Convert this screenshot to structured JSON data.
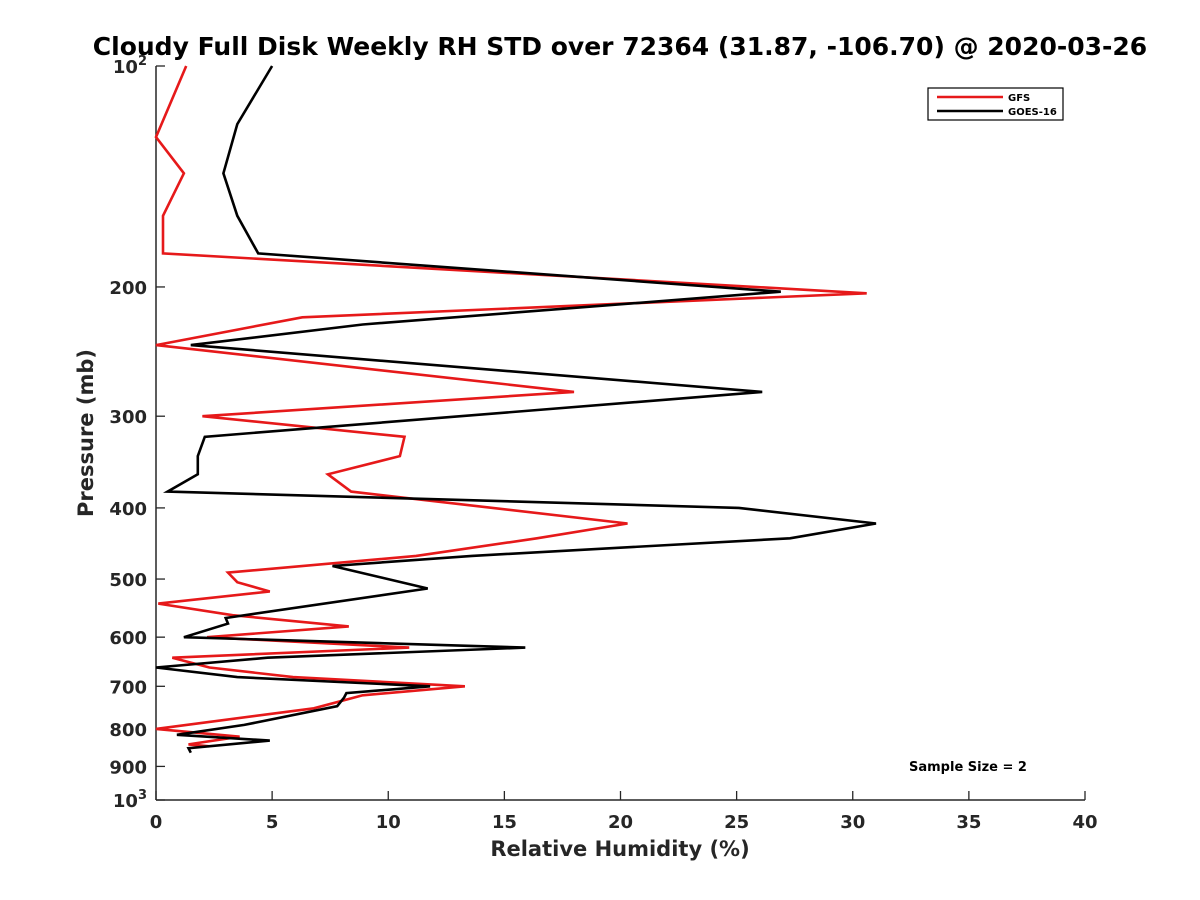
{
  "chart_data": {
    "type": "line",
    "title": "Cloudy Full Disk Weekly RH STD over 72364 (31.87, -106.70) @ 2020-03-26",
    "xlabel": "Relative Humidity (%)",
    "ylabel": "Pressure (mb)",
    "xlim": [
      0,
      40
    ],
    "ylim": [
      100,
      1000
    ],
    "yscale": "log",
    "y_reversed": true,
    "grid": false,
    "legend_position": "top-right",
    "x_ticks": [
      "0",
      "5",
      "10",
      "15",
      "20",
      "25",
      "30",
      "35",
      "40"
    ],
    "y_ticks": [
      {
        "value": 100,
        "base": "10",
        "exp": "2"
      },
      {
        "value": 200,
        "label": "200"
      },
      {
        "value": 300,
        "label": "300"
      },
      {
        "value": 400,
        "label": "400"
      },
      {
        "value": 500,
        "label": "500"
      },
      {
        "value": 600,
        "label": "600"
      },
      {
        "value": 700,
        "label": "700"
      },
      {
        "value": 800,
        "label": "800"
      },
      {
        "value": 900,
        "label": "900"
      },
      {
        "value": 1000,
        "base": "10",
        "exp": "3"
      }
    ],
    "annotation": "Sample Size = 2",
    "series": [
      {
        "name": "GFS",
        "color": "#e6191a",
        "points": [
          [
            1.3,
            100
          ],
          [
            0,
            125
          ],
          [
            1.2,
            140
          ],
          [
            0.3,
            160
          ],
          [
            0.3,
            180
          ],
          [
            30.6,
            204
          ],
          [
            6.3,
            220
          ],
          [
            0,
            240
          ],
          [
            18.0,
            278
          ],
          [
            2.0,
            300
          ],
          [
            10.7,
            320
          ],
          [
            10.5,
            340
          ],
          [
            7.4,
            360
          ],
          [
            8.4,
            380
          ],
          [
            20.3,
            420
          ],
          [
            16.4,
            440
          ],
          [
            11.2,
            465
          ],
          [
            3.1,
            490
          ],
          [
            3.5,
            505
          ],
          [
            4.9,
            520
          ],
          [
            0.1,
            540
          ],
          [
            3.3,
            560
          ],
          [
            8.3,
            580
          ],
          [
            2.2,
            600
          ],
          [
            10.9,
            620
          ],
          [
            0.7,
            640
          ],
          [
            2.3,
            660
          ],
          [
            5.9,
            680
          ],
          [
            13.3,
            700
          ],
          [
            8.9,
            720
          ],
          [
            6.8,
            750
          ],
          [
            0,
            800
          ],
          [
            3.6,
            820
          ],
          [
            1.4,
            840
          ],
          [
            2.3,
            845
          ]
        ]
      },
      {
        "name": "GOES-16",
        "color": "#000000",
        "points": [
          [
            5.0,
            100
          ],
          [
            3.5,
            120
          ],
          [
            2.9,
            140
          ],
          [
            3.5,
            160
          ],
          [
            4.4,
            180
          ],
          [
            26.9,
            203
          ],
          [
            8.9,
            225
          ],
          [
            1.5,
            240
          ],
          [
            26.1,
            278
          ],
          [
            2.1,
            320
          ],
          [
            1.8,
            340
          ],
          [
            1.8,
            360
          ],
          [
            0.5,
            380
          ],
          [
            25.1,
            400
          ],
          [
            31.0,
            420
          ],
          [
            27.3,
            440
          ],
          [
            13.6,
            465
          ],
          [
            7.6,
            480
          ],
          [
            11.7,
            515
          ],
          [
            3.0,
            565
          ],
          [
            3.1,
            575
          ],
          [
            1.2,
            600
          ],
          [
            15.9,
            620
          ],
          [
            4.8,
            640
          ],
          [
            0,
            660
          ],
          [
            3.5,
            680
          ],
          [
            11.8,
            700
          ],
          [
            8.2,
            715
          ],
          [
            8.1,
            725
          ],
          [
            7.8,
            745
          ],
          [
            3.8,
            790
          ],
          [
            0.9,
            815
          ],
          [
            4.9,
            830
          ],
          [
            1.4,
            850
          ],
          [
            1.5,
            862
          ]
        ]
      }
    ]
  }
}
